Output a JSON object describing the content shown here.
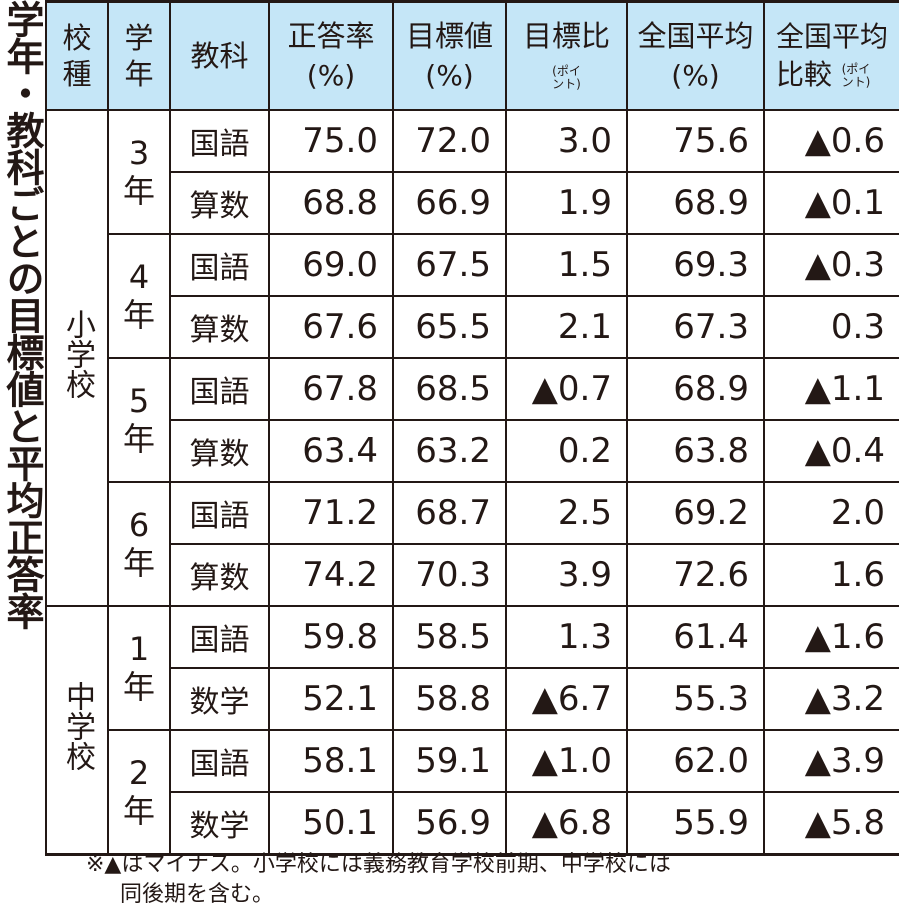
{
  "title": "学年・教科ごとの目標値と平均正答率",
  "header": {
    "school_type": "校種",
    "grade": "学年",
    "subject": "教科",
    "correct_rate": "正答率",
    "correct_rate_unit": "(%)",
    "target": "目標値",
    "target_unit": "(%)",
    "target_diff": "目標比",
    "target_diff_unit": "(ポイント)",
    "national_avg": "全国平均",
    "national_avg_unit": "(%)",
    "national_diff": "全国平均比較",
    "national_diff_unit": "(ポイント)"
  },
  "header_color": "#c5e6f7",
  "schools": [
    {
      "name": "小学校",
      "grades": [
        {
          "grade": "3年",
          "rows": [
            {
              "subject": "国語",
              "rate": "75.0",
              "target": "72.0",
              "target_diff": "3.0",
              "national": "75.6",
              "national_diff": "▲0.6"
            },
            {
              "subject": "算数",
              "rate": "68.8",
              "target": "66.9",
              "target_diff": "1.9",
              "national": "68.9",
              "national_diff": "▲0.1"
            }
          ]
        },
        {
          "grade": "4年",
          "rows": [
            {
              "subject": "国語",
              "rate": "69.0",
              "target": "67.5",
              "target_diff": "1.5",
              "national": "69.3",
              "national_diff": "▲0.3"
            },
            {
              "subject": "算数",
              "rate": "67.6",
              "target": "65.5",
              "target_diff": "2.1",
              "national": "67.3",
              "national_diff": "0.3"
            }
          ]
        },
        {
          "grade": "5年",
          "rows": [
            {
              "subject": "国語",
              "rate": "67.8",
              "target": "68.5",
              "target_diff": "▲0.7",
              "national": "68.9",
              "national_diff": "▲1.1"
            },
            {
              "subject": "算数",
              "rate": "63.4",
              "target": "63.2",
              "target_diff": "0.2",
              "national": "63.8",
              "national_diff": "▲0.4"
            }
          ]
        },
        {
          "grade": "6年",
          "rows": [
            {
              "subject": "国語",
              "rate": "71.2",
              "target": "68.7",
              "target_diff": "2.5",
              "national": "69.2",
              "national_diff": "2.0"
            },
            {
              "subject": "算数",
              "rate": "74.2",
              "target": "70.3",
              "target_diff": "3.9",
              "national": "72.6",
              "national_diff": "1.6"
            }
          ]
        }
      ]
    },
    {
      "name": "中学校",
      "grades": [
        {
          "grade": "1年",
          "rows": [
            {
              "subject": "国語",
              "rate": "59.8",
              "target": "58.5",
              "target_diff": "1.3",
              "national": "61.4",
              "national_diff": "▲1.6"
            },
            {
              "subject": "数学",
              "rate": "52.1",
              "target": "58.8",
              "target_diff": "▲6.7",
              "national": "55.3",
              "national_diff": "▲3.2"
            }
          ]
        },
        {
          "grade": "2年",
          "rows": [
            {
              "subject": "国語",
              "rate": "58.1",
              "target": "59.1",
              "target_diff": "▲1.0",
              "national": "62.0",
              "national_diff": "▲3.9"
            },
            {
              "subject": "数学",
              "rate": "50.1",
              "target": "56.9",
              "target_diff": "▲6.8",
              "national": "55.9",
              "national_diff": "▲5.8"
            }
          ]
        }
      ]
    }
  ],
  "footnote": {
    "line1": "※▲はマイナス。小学校には義務教育学校前期、中学校には",
    "line2": "同後期を含む。"
  }
}
